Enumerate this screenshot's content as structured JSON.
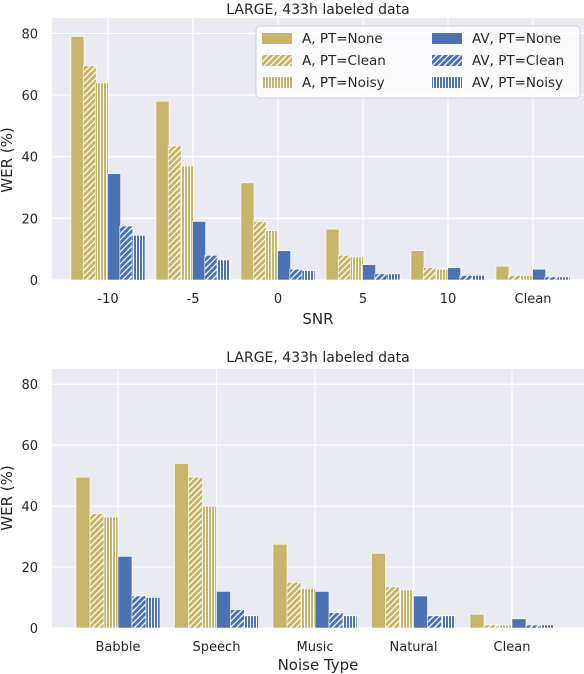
{
  "colors": {
    "a": "#c9b46b",
    "av": "#4c72b0",
    "plot_bg": "#eaeaf2",
    "grid": "#ffffff"
  },
  "chart_data": [
    {
      "type": "bar",
      "title": "LARGE, 433h labeled data",
      "xlabel": "SNR",
      "ylabel": "WER (%)",
      "categories": [
        "-10",
        "-5",
        "0",
        "5",
        "10",
        "Clean"
      ],
      "ylim": [
        0,
        85
      ],
      "yticks": [
        0,
        20,
        40,
        60,
        80
      ],
      "grid": true,
      "legend": "top-right",
      "series": [
        {
          "name": "A, PT=None",
          "color": "a",
          "hatch": "none",
          "values": [
            79.0,
            58.0,
            31.5,
            16.5,
            9.5,
            4.5
          ]
        },
        {
          "name": "A, PT=Clean",
          "color": "a",
          "hatch": "diagonal",
          "values": [
            69.5,
            43.5,
            19.0,
            8.0,
            4.0,
            1.5
          ]
        },
        {
          "name": "A, PT=Noisy",
          "color": "a",
          "hatch": "vertical",
          "values": [
            64.0,
            37.0,
            16.0,
            7.5,
            3.5,
            1.5
          ]
        },
        {
          "name": "AV, PT=None",
          "color": "av",
          "hatch": "none",
          "values": [
            34.5,
            19.0,
            9.5,
            5.0,
            4.0,
            3.5
          ]
        },
        {
          "name": "AV, PT=Clean",
          "color": "av",
          "hatch": "diagonal",
          "values": [
            17.5,
            8.0,
            3.5,
            2.0,
            1.5,
            1.0
          ]
        },
        {
          "name": "AV, PT=Noisy",
          "color": "av",
          "hatch": "vertical",
          "values": [
            14.5,
            6.5,
            3.0,
            2.0,
            1.5,
            1.0
          ]
        }
      ]
    },
    {
      "type": "bar",
      "title": "LARGE, 433h labeled data",
      "xlabel": "Noise Type",
      "ylabel": "WER (%)",
      "categories": [
        "Babble",
        "Speech",
        "Music",
        "Natural",
        "Clean"
      ],
      "ylim": [
        0,
        85
      ],
      "yticks": [
        0,
        20,
        40,
        60,
        80
      ],
      "grid": true,
      "series": [
        {
          "name": "A, PT=None",
          "color": "a",
          "hatch": "none",
          "values": [
            49.5,
            54.0,
            27.5,
            24.5,
            4.5
          ]
        },
        {
          "name": "A, PT=Clean",
          "color": "a",
          "hatch": "diagonal",
          "values": [
            37.5,
            49.5,
            15.0,
            13.5,
            1.0
          ]
        },
        {
          "name": "A, PT=Noisy",
          "color": "a",
          "hatch": "vertical",
          "values": [
            36.5,
            40.0,
            13.0,
            12.5,
            1.0
          ]
        },
        {
          "name": "AV, PT=None",
          "color": "av",
          "hatch": "none",
          "values": [
            23.5,
            12.0,
            12.0,
            10.5,
            3.0
          ]
        },
        {
          "name": "AV, PT=Clean",
          "color": "av",
          "hatch": "diagonal",
          "values": [
            10.5,
            6.0,
            5.0,
            4.0,
            1.0
          ]
        },
        {
          "name": "AV, PT=Noisy",
          "color": "av",
          "hatch": "vertical",
          "values": [
            10.0,
            4.0,
            4.0,
            4.0,
            1.0
          ]
        }
      ]
    }
  ]
}
